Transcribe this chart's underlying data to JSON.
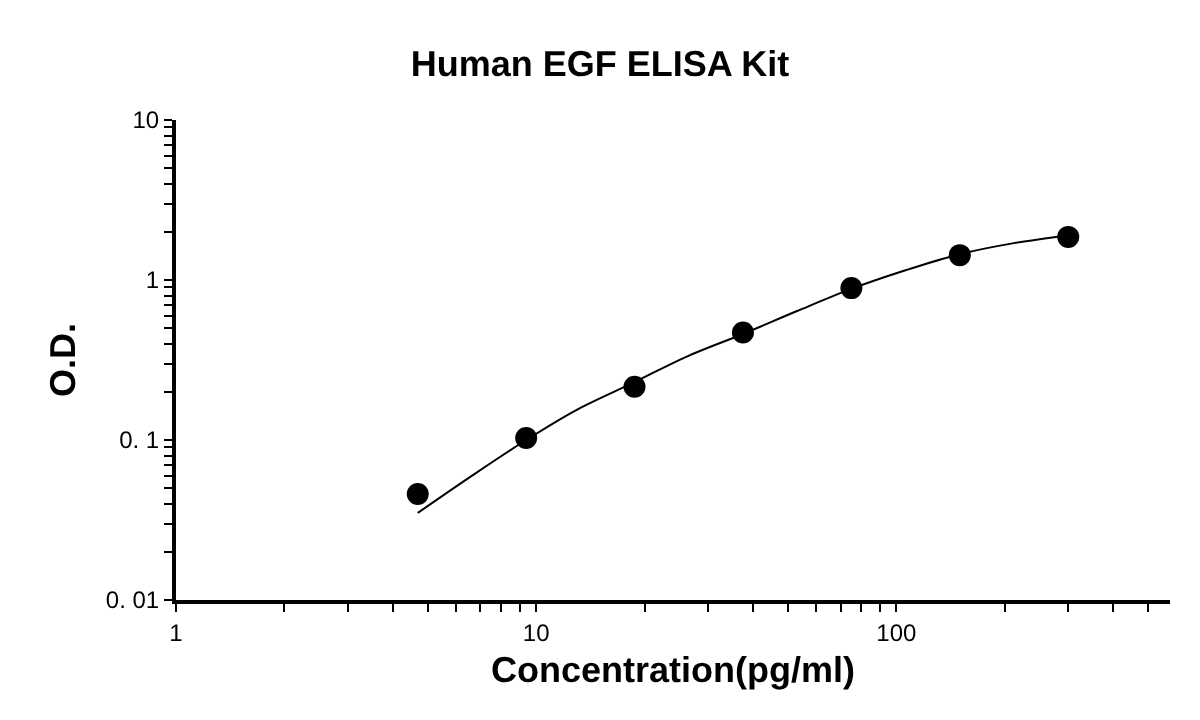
{
  "chart_data": {
    "type": "scatter",
    "title": "Human EGF ELISA Kit",
    "xlabel": "Concentration(pg/ml)",
    "ylabel": "O.D.",
    "log": "xy",
    "grid": false,
    "marker": "circle",
    "xlim": [
      1,
      575
    ],
    "ylim": [
      0.01,
      10
    ],
    "xticks": [
      1,
      {
        "value": 2,
        "label": null
      },
      {
        "value": 3,
        "label": null
      },
      {
        "value": 4,
        "label": null
      },
      {
        "value": 5,
        "label": null
      },
      {
        "value": 6,
        "label": null
      },
      {
        "value": 7,
        "label": null
      },
      {
        "value": 8,
        "label": null
      },
      {
        "value": 9,
        "label": null
      },
      10,
      {
        "value": 20,
        "label": null
      },
      {
        "value": 30,
        "label": null
      },
      {
        "value": 40,
        "label": null
      },
      {
        "value": 50,
        "label": null
      },
      {
        "value": 60,
        "label": null
      },
      {
        "value": 70,
        "label": null
      },
      {
        "value": 80,
        "label": null
      },
      {
        "value": 90,
        "label": null
      },
      100,
      {
        "value": 200,
        "label": null
      },
      {
        "value": 300,
        "label": null
      },
      {
        "value": 400,
        "label": null
      },
      {
        "value": 500,
        "label": null
      }
    ],
    "yticks": [
      {
        "value": 0.01,
        "label": "0. 01"
      },
      {
        "value": 0.02,
        "label": null
      },
      {
        "value": 0.03,
        "label": null
      },
      {
        "value": 0.04,
        "label": null
      },
      {
        "value": 0.05,
        "label": null
      },
      {
        "value": 0.06,
        "label": null
      },
      {
        "value": 0.07,
        "label": null
      },
      {
        "value": 0.08,
        "label": null
      },
      {
        "value": 0.09,
        "label": null
      },
      {
        "value": 0.1,
        "label": "0. 1"
      },
      {
        "value": 0.2,
        "label": null
      },
      {
        "value": 0.3,
        "label": null
      },
      {
        "value": 0.4,
        "label": null
      },
      {
        "value": 0.5,
        "label": null
      },
      {
        "value": 0.6,
        "label": null
      },
      {
        "value": 0.7,
        "label": null
      },
      {
        "value": 0.8,
        "label": null
      },
      {
        "value": 0.9,
        "label": null
      },
      1,
      {
        "value": 2,
        "label": null
      },
      {
        "value": 3,
        "label": null
      },
      {
        "value": 4,
        "label": null
      },
      {
        "value": 5,
        "label": null
      },
      {
        "value": 6,
        "label": null
      },
      {
        "value": 7,
        "label": null
      },
      {
        "value": 8,
        "label": null
      },
      {
        "value": 9,
        "label": null
      },
      10
    ],
    "series": [
      {
        "color": "#000000",
        "x": [
          4.69,
          9.38,
          18.75,
          37.5,
          75,
          150,
          300
        ],
        "values": [
          0.046,
          0.103,
          0.215,
          0.47,
          0.89,
          1.43,
          1.86
        ]
      },
      {
        "type": "line",
        "color": "#000000",
        "marker": "none",
        "x": [
          4.69,
          6.5,
          9.38,
          13,
          18.75,
          26,
          37.5,
          53,
          75,
          106,
          150,
          212,
          300
        ],
        "values": [
          0.035,
          0.058,
          0.1,
          0.155,
          0.23,
          0.33,
          0.46,
          0.64,
          0.88,
          1.15,
          1.45,
          1.7,
          1.9
        ]
      }
    ]
  }
}
